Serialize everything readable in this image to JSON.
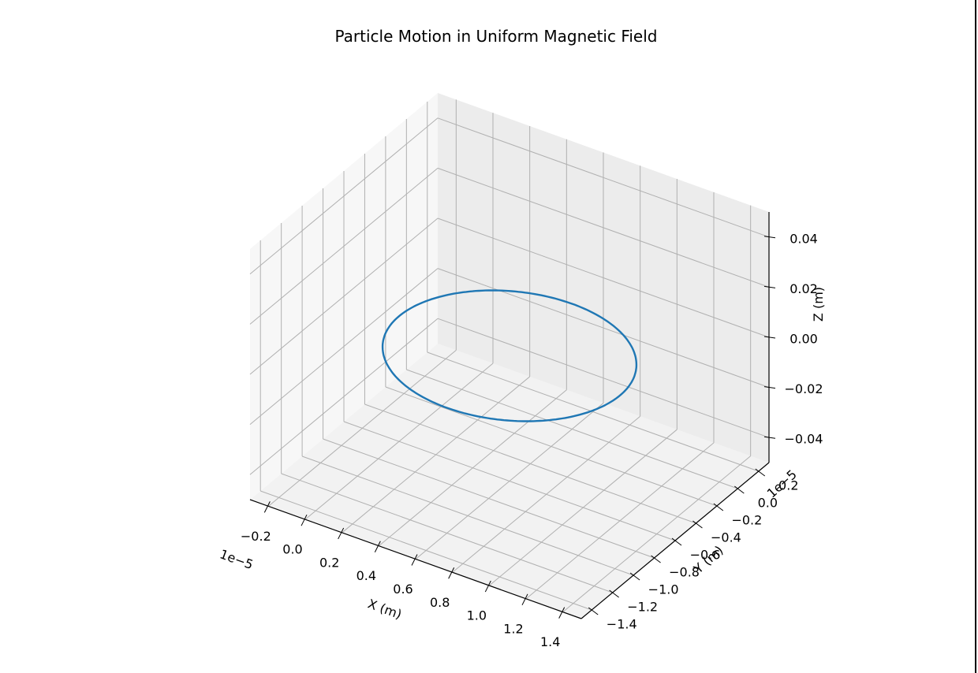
{
  "chart_data": {
    "type": "line3d",
    "title": "Particle Motion in Uniform Magnetic Field",
    "xlabel": "X (m)",
    "ylabel": "Y (m)",
    "zlabel": "Z (m)",
    "x_offset_label": "1e−5",
    "y_offset_label": "1e−5",
    "x_ticks": [
      "−0.2",
      "0.0",
      "0.2",
      "0.4",
      "0.6",
      "0.8",
      "1.0",
      "1.2",
      "1.4"
    ],
    "y_ticks": [
      "−1.4",
      "−1.2",
      "−1.0",
      "−0.8",
      "−0.6",
      "−0.4",
      "−0.2",
      "0.0",
      "0.2"
    ],
    "z_ticks": [
      "−0.04",
      "−0.02",
      "0.00",
      "0.02",
      "0.04"
    ],
    "xlim": [
      -0.3,
      1.5
    ],
    "ylim": [
      -1.5,
      0.3
    ],
    "zlim": [
      -0.05,
      0.05
    ],
    "grid": true,
    "series": [
      {
        "color": "#1f77b4",
        "shape": "circle",
        "center": {
          "x": 0.6,
          "y": -0.6,
          "z": 0.0
        },
        "radius": 0.6
      }
    ]
  }
}
